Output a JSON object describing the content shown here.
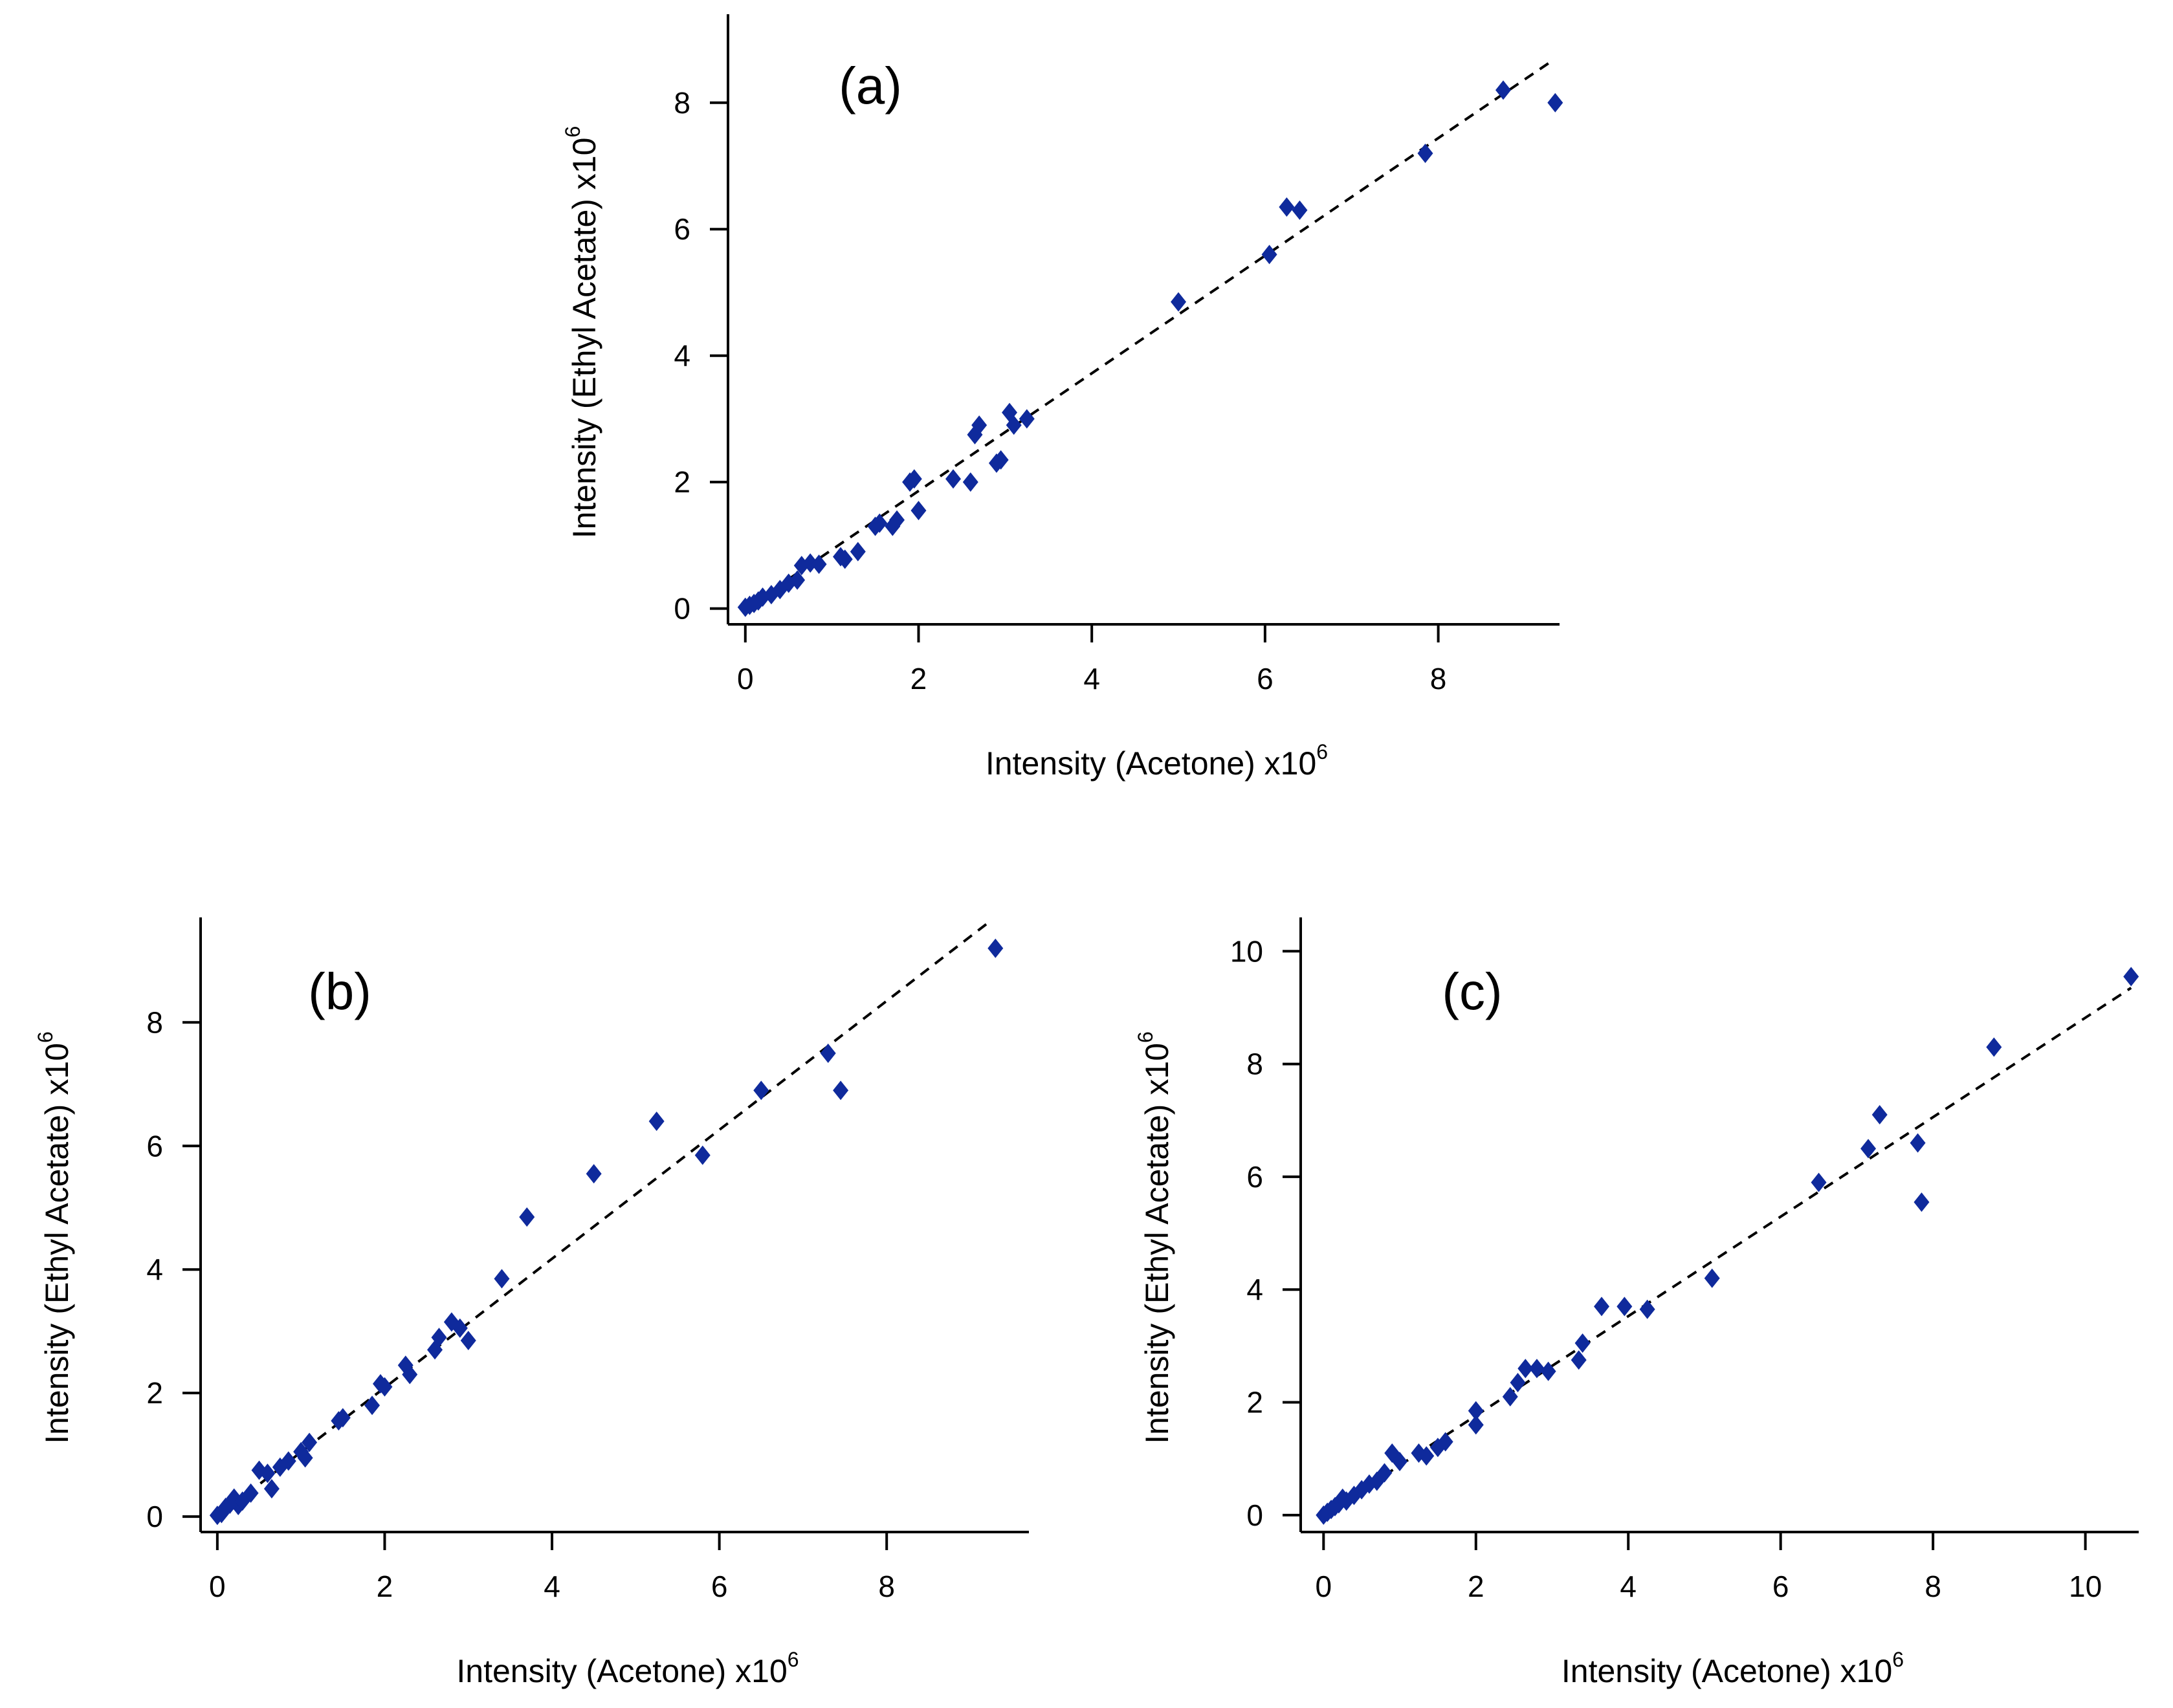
{
  "figure": {
    "marker_color": "#0f2a9c",
    "axis_color": "#000000",
    "fit_line_color": "#000000"
  },
  "chart_data": [
    {
      "type": "scatter",
      "panel": "(a)",
      "xlabel": "Intensity (Acetone) x10",
      "xlabel_exp": "6",
      "ylabel": "Intensity (Ethyl Acetate) x10",
      "ylabel_exp": "6",
      "xlim": [
        -0.2,
        9.4
      ],
      "ylim": [
        -0.25,
        9.4
      ],
      "xticks": [
        0,
        2,
        4,
        6,
        8
      ],
      "yticks": [
        0,
        2,
        4,
        6,
        8
      ],
      "fit_line": {
        "x": [
          0,
          9.3
        ],
        "y": [
          0,
          8.65
        ]
      },
      "points": [
        [
          0.0,
          0.02
        ],
        [
          0.05,
          0.05
        ],
        [
          0.1,
          0.08
        ],
        [
          0.15,
          0.12
        ],
        [
          0.2,
          0.18
        ],
        [
          0.3,
          0.22
        ],
        [
          0.4,
          0.3
        ],
        [
          0.5,
          0.4
        ],
        [
          0.6,
          0.45
        ],
        [
          0.65,
          0.68
        ],
        [
          0.75,
          0.72
        ],
        [
          0.85,
          0.7
        ],
        [
          1.1,
          0.82
        ],
        [
          1.15,
          0.78
        ],
        [
          1.3,
          0.9
        ],
        [
          1.5,
          1.3
        ],
        [
          1.55,
          1.35
        ],
        [
          1.7,
          1.3
        ],
        [
          1.75,
          1.4
        ],
        [
          1.9,
          2.0
        ],
        [
          1.95,
          2.05
        ],
        [
          2.0,
          1.55
        ],
        [
          2.4,
          2.05
        ],
        [
          2.6,
          2.0
        ],
        [
          2.65,
          2.75
        ],
        [
          2.7,
          2.9
        ],
        [
          2.9,
          2.3
        ],
        [
          2.95,
          2.35
        ],
        [
          3.05,
          3.1
        ],
        [
          3.1,
          2.9
        ],
        [
          3.25,
          3.0
        ],
        [
          5.0,
          4.85
        ],
        [
          6.05,
          5.6
        ],
        [
          6.25,
          6.35
        ],
        [
          6.4,
          6.3
        ],
        [
          7.85,
          7.2
        ],
        [
          8.75,
          8.2
        ],
        [
          9.35,
          8.0
        ]
      ]
    },
    {
      "type": "scatter",
      "panel": "(b)",
      "xlabel": "Intensity (Acetone) x10",
      "xlabel_exp": "6",
      "ylabel": "Intensity (Ethyl Acetate) x10",
      "ylabel_exp": "6",
      "xlim": [
        -0.2,
        9.7
      ],
      "ylim": [
        -0.25,
        9.7
      ],
      "xticks": [
        0,
        2,
        4,
        6,
        8
      ],
      "yticks": [
        0,
        2,
        4,
        6,
        8
      ],
      "fit_line": {
        "x": [
          0,
          9.2
        ],
        "y": [
          0,
          9.6
        ]
      },
      "points": [
        [
          0.0,
          0.02
        ],
        [
          0.05,
          0.05
        ],
        [
          0.1,
          0.15
        ],
        [
          0.15,
          0.2
        ],
        [
          0.2,
          0.3
        ],
        [
          0.25,
          0.18
        ],
        [
          0.3,
          0.25
        ],
        [
          0.4,
          0.38
        ],
        [
          0.5,
          0.75
        ],
        [
          0.6,
          0.7
        ],
        [
          0.65,
          0.45
        ],
        [
          0.75,
          0.8
        ],
        [
          0.85,
          0.9
        ],
        [
          1.0,
          1.05
        ],
        [
          1.05,
          0.95
        ],
        [
          1.1,
          1.2
        ],
        [
          1.45,
          1.55
        ],
        [
          1.5,
          1.6
        ],
        [
          1.85,
          1.8
        ],
        [
          1.95,
          2.15
        ],
        [
          2.0,
          2.1
        ],
        [
          2.25,
          2.45
        ],
        [
          2.3,
          2.3
        ],
        [
          2.6,
          2.7
        ],
        [
          2.65,
          2.9
        ],
        [
          2.8,
          3.15
        ],
        [
          2.9,
          3.05
        ],
        [
          3.0,
          2.85
        ],
        [
          3.4,
          3.85
        ],
        [
          3.7,
          4.85
        ],
        [
          4.5,
          5.55
        ],
        [
          5.25,
          6.4
        ],
        [
          5.8,
          5.85
        ],
        [
          6.5,
          6.9
        ],
        [
          7.3,
          7.5
        ],
        [
          7.45,
          6.9
        ],
        [
          9.3,
          9.2
        ]
      ]
    },
    {
      "type": "scatter",
      "panel": "(c)",
      "xlabel": "Intensity (Acetone) x10",
      "xlabel_exp": "6",
      "ylabel": "Intensity (Ethyl Acetate) x10",
      "ylabel_exp": "6",
      "xlim": [
        -0.3,
        10.7
      ],
      "ylim": [
        -0.3,
        10.6
      ],
      "xticks": [
        0,
        2,
        4,
        6,
        8,
        10
      ],
      "yticks": [
        0,
        2,
        4,
        6,
        8,
        10
      ],
      "fit_line": {
        "x": [
          0,
          10.6
        ],
        "y": [
          0,
          9.35
        ]
      },
      "points": [
        [
          0.0,
          0.0
        ],
        [
          0.05,
          0.05
        ],
        [
          0.1,
          0.1
        ],
        [
          0.15,
          0.15
        ],
        [
          0.2,
          0.2
        ],
        [
          0.25,
          0.3
        ],
        [
          0.3,
          0.25
        ],
        [
          0.4,
          0.35
        ],
        [
          0.5,
          0.45
        ],
        [
          0.6,
          0.55
        ],
        [
          0.7,
          0.6
        ],
        [
          0.8,
          0.75
        ],
        [
          0.9,
          1.1
        ],
        [
          1.0,
          0.95
        ],
        [
          1.25,
          1.1
        ],
        [
          1.35,
          1.05
        ],
        [
          1.5,
          1.2
        ],
        [
          1.6,
          1.3
        ],
        [
          2.0,
          1.85
        ],
        [
          2.0,
          1.6
        ],
        [
          2.45,
          2.1
        ],
        [
          2.55,
          2.35
        ],
        [
          2.65,
          2.6
        ],
        [
          2.8,
          2.6
        ],
        [
          2.95,
          2.55
        ],
        [
          3.35,
          2.75
        ],
        [
          3.4,
          3.05
        ],
        [
          3.65,
          3.7
        ],
        [
          3.95,
          3.7
        ],
        [
          4.25,
          3.65
        ],
        [
          5.1,
          4.2
        ],
        [
          6.5,
          5.9
        ],
        [
          7.15,
          6.5
        ],
        [
          7.3,
          7.1
        ],
        [
          7.8,
          6.6
        ],
        [
          7.85,
          5.55
        ],
        [
          8.8,
          8.3
        ],
        [
          10.6,
          9.55
        ]
      ]
    }
  ]
}
